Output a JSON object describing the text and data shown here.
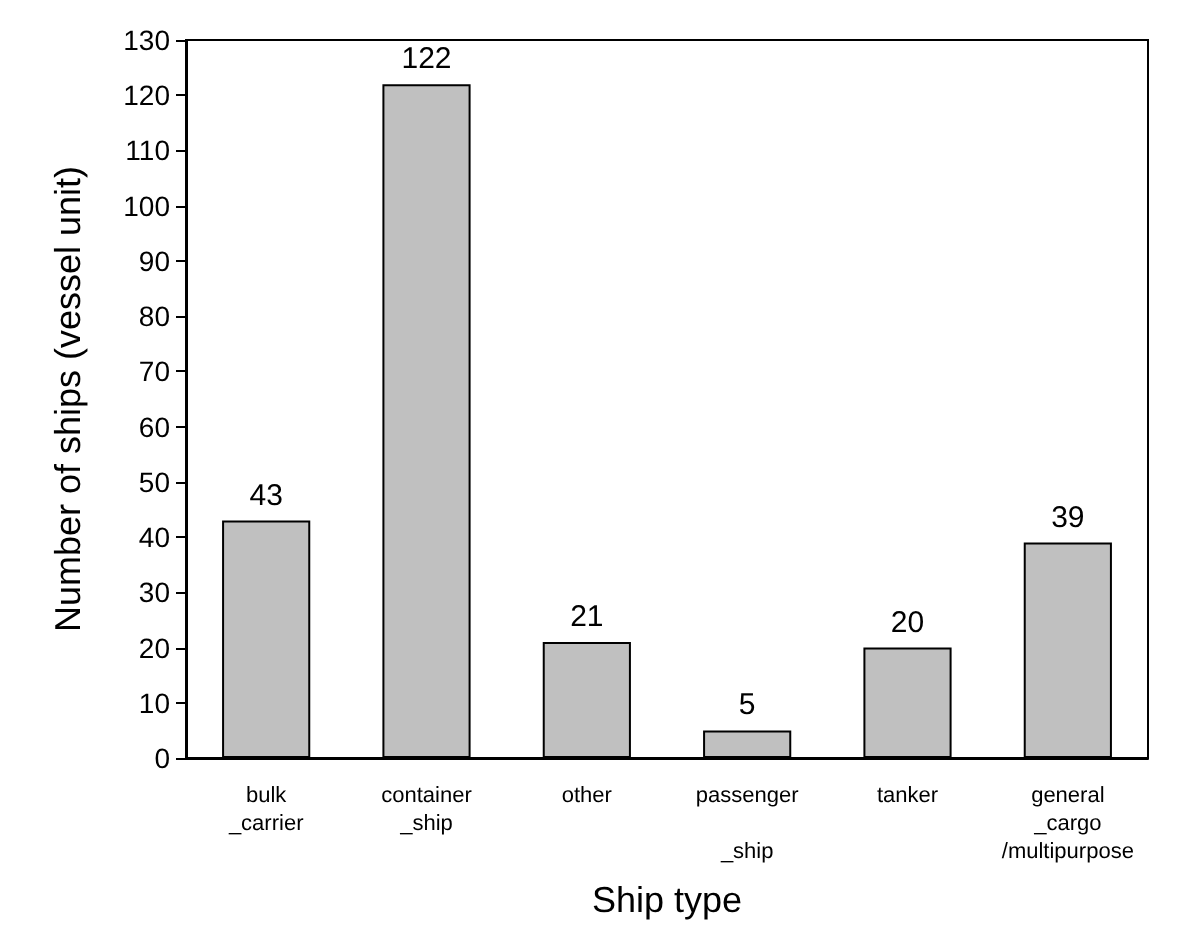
{
  "chart_data": {
    "type": "bar",
    "xlabel": "Ship type",
    "ylabel": "Number of ships (vessel unit)",
    "categories": [
      "bulk\n_carrier",
      "container\n_ship",
      "other",
      "passenger\n\n_ship",
      "tanker",
      "general\n_cargo\n/multipurpose"
    ],
    "values": [
      43,
      122,
      21,
      5,
      20,
      39
    ],
    "color": "#c0c0c0",
    "ylim": [
      0,
      130
    ],
    "yticks": [
      0,
      10,
      20,
      30,
      40,
      50,
      60,
      70,
      80,
      90,
      100,
      110,
      120,
      130
    ],
    "data_labels": true,
    "grid": false
  }
}
